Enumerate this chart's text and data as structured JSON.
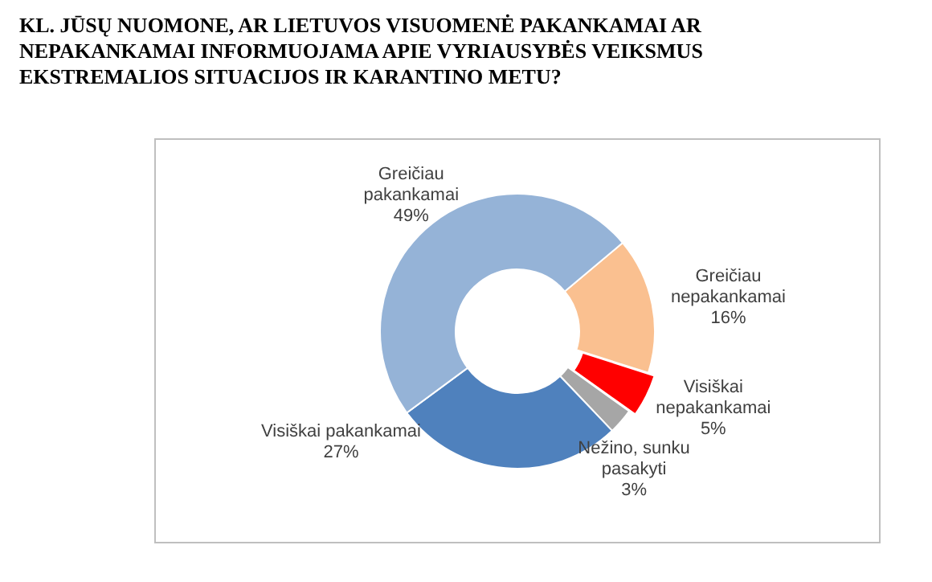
{
  "chart_data": {
    "type": "donut",
    "title": "KL. JŪSŲ NUOMONE,  AR LIETUVOS VISUOMENĖ PAKANKAMAI AR NEPAKANKAMAI INFORMUOJAMA APIE VYRIAUSYBĖS VEIKSMUS EKSTREMALIOS SITUACIJOS IR KARANTINO METU?",
    "categories": [
      "Greičiau nepakankamai",
      "Visiškai nepakankamai",
      "Nežino, sunku pasakyti",
      "Visiškai pakankamai",
      "Greičiau pakankamai"
    ],
    "values": [
      16,
      5,
      3,
      27,
      49
    ],
    "value_labels": [
      "16%",
      "5%",
      "3%",
      "27%",
      "49%"
    ],
    "colors": [
      "#fac090",
      "#ff0000",
      "#a6a6a6",
      "#4f81bd",
      "#95b3d7"
    ],
    "legend": false
  }
}
